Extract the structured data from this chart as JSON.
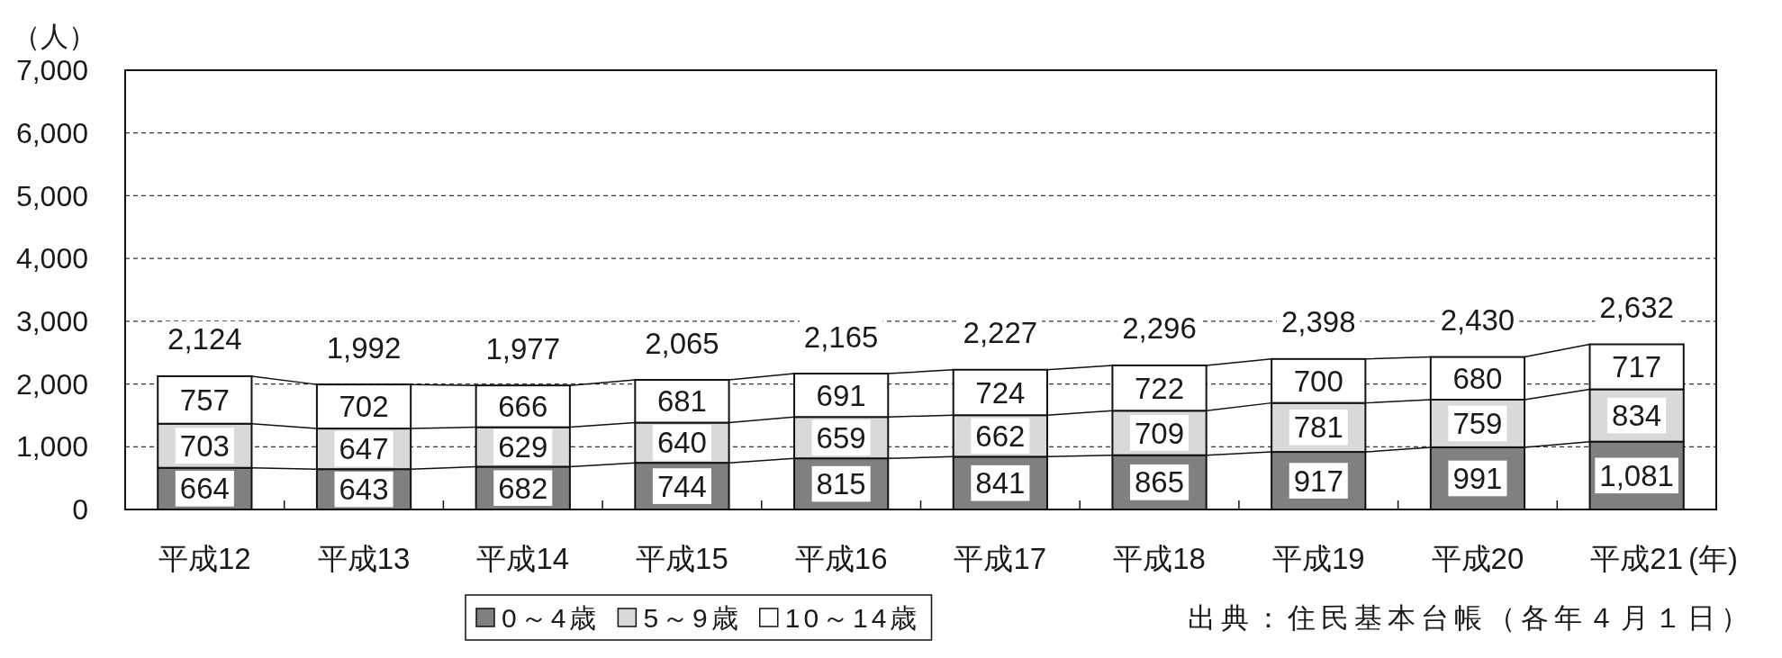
{
  "chart_data": {
    "type": "bar",
    "stacked": true,
    "ylabel": "（人）",
    "xlabel": "(年)",
    "categories": [
      "平成12",
      "平成13",
      "平成14",
      "平成15",
      "平成16",
      "平成17",
      "平成18",
      "平成19",
      "平成20",
      "平成21"
    ],
    "series": [
      {
        "name": "0～4歳",
        "color": "#808080",
        "values": [
          664,
          643,
          682,
          744,
          815,
          841,
          865,
          917,
          991,
          1081
        ],
        "value_labels": [
          "664",
          "643",
          "682",
          "744",
          "815",
          "841",
          "865",
          "917",
          "991",
          "1,081"
        ]
      },
      {
        "name": "5～9歳",
        "color": "#d9d9d9",
        "values": [
          703,
          647,
          629,
          640,
          659,
          662,
          709,
          781,
          759,
          834
        ],
        "value_labels": [
          "703",
          "647",
          "629",
          "640",
          "659",
          "662",
          "709",
          "781",
          "759",
          "834"
        ]
      },
      {
        "name": "10～14歳",
        "color": "#ffffff",
        "values": [
          757,
          702,
          666,
          681,
          691,
          724,
          722,
          700,
          680,
          717
        ],
        "value_labels": [
          "757",
          "702",
          "666",
          "681",
          "691",
          "724",
          "722",
          "700",
          "680",
          "717"
        ]
      }
    ],
    "totals": [
      "2,124",
      "1,992",
      "1,977",
      "2,065",
      "2,165",
      "2,227",
      "2,296",
      "2,398",
      "2,430",
      "2,632"
    ],
    "ylim": [
      0,
      7000
    ],
    "yticks": [
      0,
      {
        "value": 1000,
        "label": "1,000"
      },
      {
        "value": 2000,
        "label": "2,000"
      },
      {
        "value": 3000,
        "label": "3,000"
      },
      {
        "value": 4000,
        "label": "4,000"
      },
      {
        "value": 5000,
        "label": "5,000"
      },
      {
        "value": 6000,
        "label": "6,000"
      },
      {
        "value": 7000,
        "label": "7,000"
      }
    ],
    "grid": "y",
    "legend": "bottom",
    "annotations": [
      "出典：住民基本台帳（各年４月１日）"
    ]
  }
}
